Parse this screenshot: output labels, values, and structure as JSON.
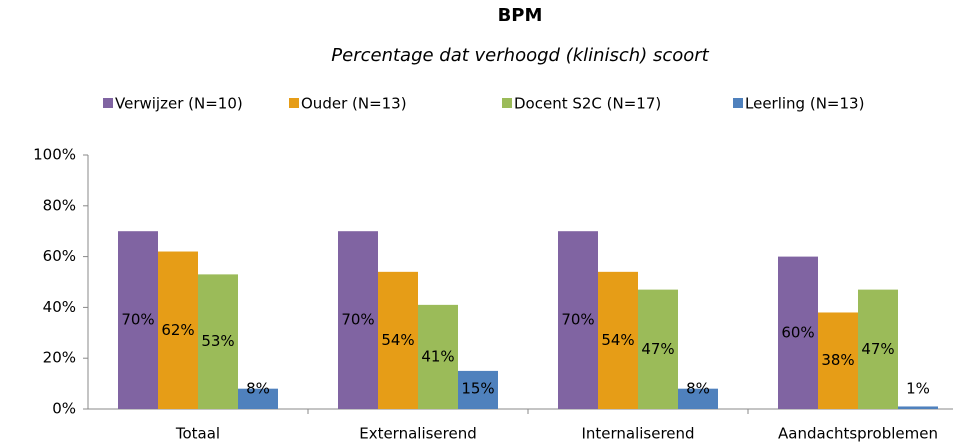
{
  "chart_data": {
    "type": "bar",
    "title": "BPM",
    "subtitle": "Percentage dat verhoogd (klinisch) scoort",
    "categories": [
      "Totaal",
      "Externaliserend",
      "Internaliserend",
      "Aandachtsproblemen"
    ],
    "series": [
      {
        "name": "Verwijzer (N=10)",
        "color": "#8064a2",
        "values": [
          70,
          70,
          70,
          60
        ],
        "value_labels": [
          "70%",
          "70%",
          "70%",
          "60%"
        ]
      },
      {
        "name": "Ouder (N=13)",
        "color": "#e69d17",
        "values": [
          62,
          54,
          54,
          38
        ],
        "value_labels": [
          "62%",
          "54%",
          "54%",
          "38%"
        ]
      },
      {
        "name": "Docent S2C (N=17)",
        "color": "#9bbb59",
        "values": [
          53,
          41,
          47,
          47
        ],
        "value_labels": [
          "53%",
          "41%",
          "47%",
          "47%"
        ]
      },
      {
        "name": "Leerling (N=13)",
        "color": "#4f81bd",
        "values": [
          8,
          15,
          8,
          1
        ],
        "value_labels": [
          "8%",
          "15%",
          "8%",
          "1%"
        ]
      }
    ],
    "ylim": [
      0,
      100
    ],
    "yticks": [
      {
        "value": 0,
        "label": "0%"
      },
      {
        "value": 20,
        "label": "20%"
      },
      {
        "value": 40,
        "label": "40%"
      },
      {
        "value": 60,
        "label": "60%"
      },
      {
        "value": 80,
        "label": "80%"
      },
      {
        "value": 100,
        "label": "100%"
      }
    ],
    "legend": "top"
  }
}
